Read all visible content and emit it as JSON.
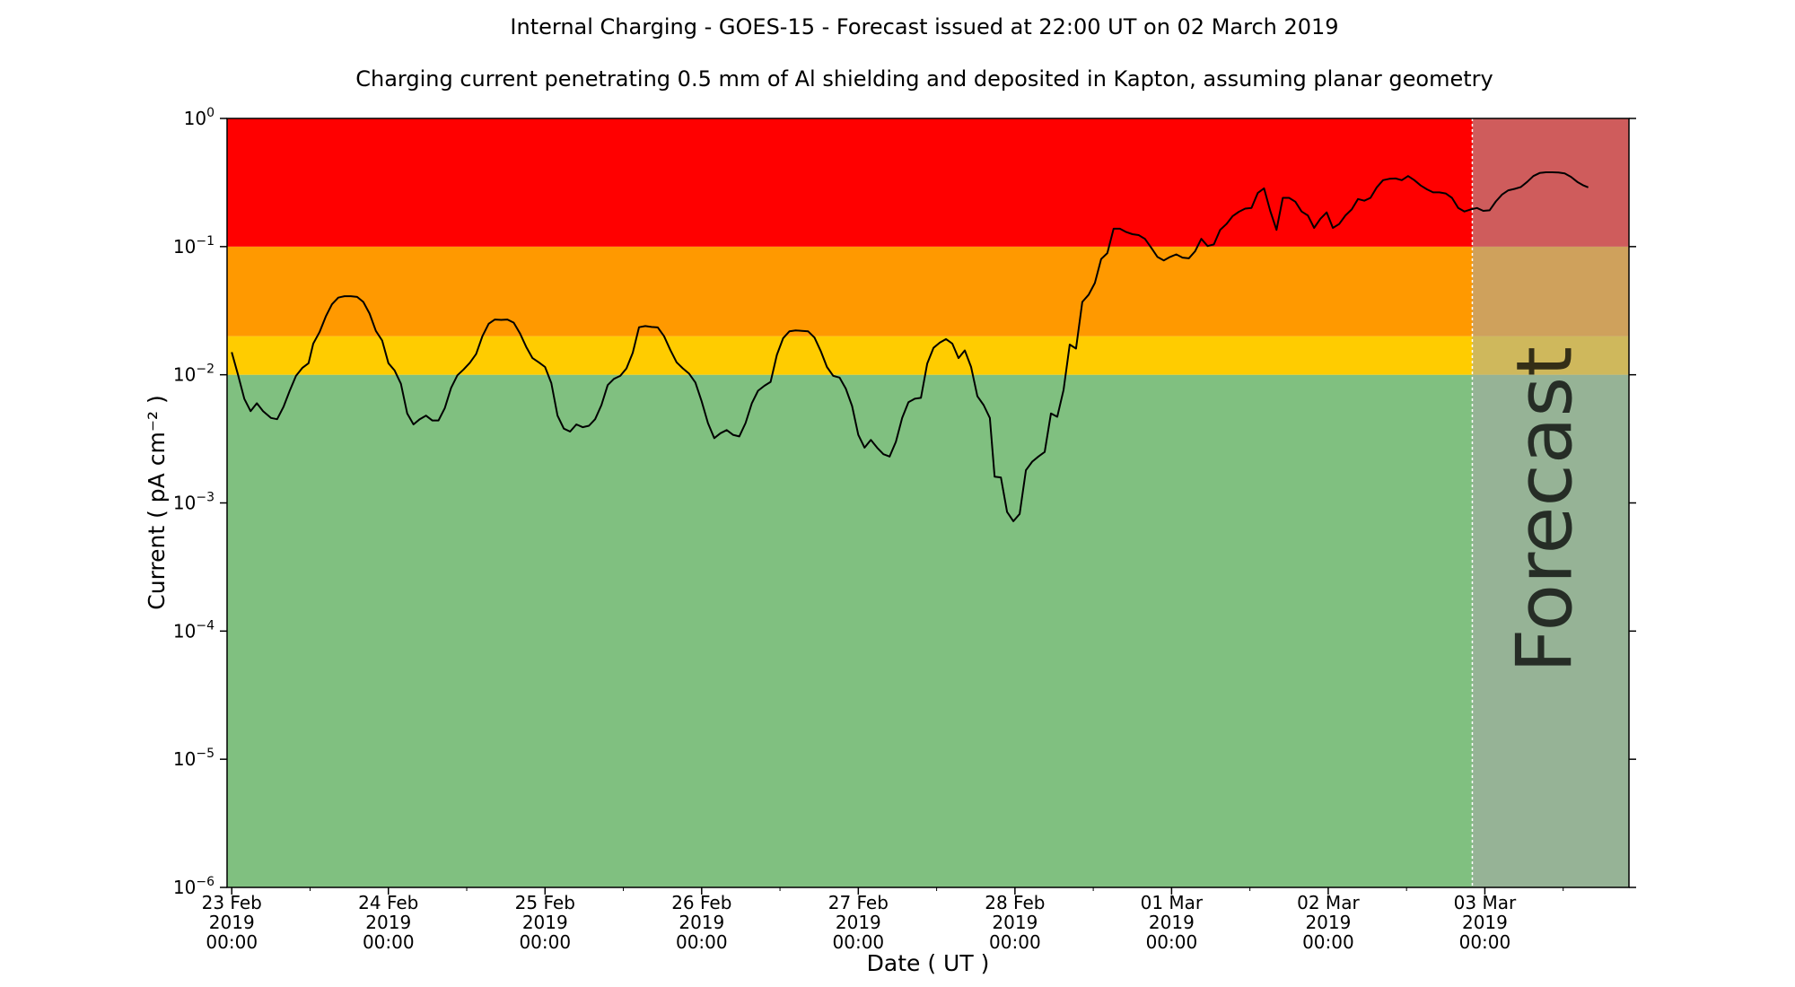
{
  "chart_data": {
    "type": "line",
    "title": "Internal Charging - GOES-15 - Forecast issued at 22:00 UT on 02 March 2019",
    "subtitle": "Charging current penetrating 0.5 mm of Al shielding and deposited in Kapton, assuming planar geometry",
    "xlabel": "Date ( UT )",
    "ylabel": "Current ( pA cm⁻² )",
    "yscale": "log",
    "ylim": [
      1e-06,
      1
    ],
    "xlim_days": [
      -0.03,
      8.92
    ],
    "forecast_start_day": 7.92,
    "forecast_label": "Forecast",
    "x_ticks": [
      {
        "day": 0,
        "line1": "23 Feb",
        "line2": "2019",
        "line3": "00:00"
      },
      {
        "day": 1,
        "line1": "24 Feb",
        "line2": "2019",
        "line3": "00:00"
      },
      {
        "day": 2,
        "line1": "25 Feb",
        "line2": "2019",
        "line3": "00:00"
      },
      {
        "day": 3,
        "line1": "26 Feb",
        "line2": "2019",
        "line3": "00:00"
      },
      {
        "day": 4,
        "line1": "27 Feb",
        "line2": "2019",
        "line3": "00:00"
      },
      {
        "day": 5,
        "line1": "28 Feb",
        "line2": "2019",
        "line3": "00:00"
      },
      {
        "day": 6,
        "line1": "01 Mar",
        "line2": "2019",
        "line3": "00:00"
      },
      {
        "day": 7,
        "line1": "02 Mar",
        "line2": "2019",
        "line3": "00:00"
      },
      {
        "day": 8,
        "line1": "03 Mar",
        "line2": "2019",
        "line3": "00:00"
      }
    ],
    "y_ticks": [
      {
        "exp": 0,
        "base": "10",
        "sup": "0"
      },
      {
        "exp": -1,
        "base": "10",
        "sup": "−1"
      },
      {
        "exp": -2,
        "base": "10",
        "sup": "−2"
      },
      {
        "exp": -3,
        "base": "10",
        "sup": "−3"
      },
      {
        "exp": -4,
        "base": "10",
        "sup": "−4"
      },
      {
        "exp": -5,
        "base": "10",
        "sup": "−5"
      },
      {
        "exp": -6,
        "base": "10",
        "sup": "−6"
      }
    ],
    "bands": [
      {
        "from": 1e-06,
        "to": 0.01,
        "color": "#80c080"
      },
      {
        "from": 0.01,
        "to": 0.02,
        "color": "#ffcc00"
      },
      {
        "from": 0.02,
        "to": 0.1,
        "color": "#ff9900"
      },
      {
        "from": 0.1,
        "to": 1,
        "color": "#ff0000"
      }
    ],
    "forecast_shade": {
      "color": "#a8a8a8",
      "opacity": 0.55
    },
    "series": [
      {
        "color": "#000000",
        "points": [
          [
            0.0,
            0.015
          ],
          [
            0.04,
            0.01
          ],
          [
            0.08,
            0.0065
          ],
          [
            0.12,
            0.0052
          ],
          [
            0.16,
            0.006
          ],
          [
            0.2,
            0.0052
          ],
          [
            0.25,
            0.0046
          ],
          [
            0.29,
            0.0045
          ],
          [
            0.33,
            0.0056
          ],
          [
            0.37,
            0.0075
          ],
          [
            0.41,
            0.0098
          ],
          [
            0.45,
            0.0113
          ],
          [
            0.49,
            0.0123
          ],
          [
            0.52,
            0.0175
          ],
          [
            0.56,
            0.0215
          ],
          [
            0.6,
            0.0285
          ],
          [
            0.64,
            0.0355
          ],
          [
            0.68,
            0.04
          ],
          [
            0.72,
            0.041
          ],
          [
            0.76,
            0.041
          ],
          [
            0.8,
            0.0405
          ],
          [
            0.84,
            0.037
          ],
          [
            0.88,
            0.03
          ],
          [
            0.92,
            0.022
          ],
          [
            0.96,
            0.0185
          ],
          [
            1.0,
            0.0123
          ],
          [
            1.04,
            0.0108
          ],
          [
            1.08,
            0.0085
          ],
          [
            1.12,
            0.005
          ],
          [
            1.16,
            0.0041
          ],
          [
            1.2,
            0.0045
          ],
          [
            1.24,
            0.0048
          ],
          [
            1.28,
            0.0044
          ],
          [
            1.32,
            0.0044
          ],
          [
            1.36,
            0.0055
          ],
          [
            1.4,
            0.0079
          ],
          [
            1.44,
            0.0099
          ],
          [
            1.48,
            0.011
          ],
          [
            1.52,
            0.0124
          ],
          [
            1.56,
            0.0145
          ],
          [
            1.6,
            0.02
          ],
          [
            1.64,
            0.025
          ],
          [
            1.68,
            0.027
          ],
          [
            1.72,
            0.0268
          ],
          [
            1.76,
            0.027
          ],
          [
            1.8,
            0.0255
          ],
          [
            1.84,
            0.021
          ],
          [
            1.88,
            0.0165
          ],
          [
            1.92,
            0.0135
          ],
          [
            1.96,
            0.0125
          ],
          [
            2.0,
            0.0115
          ],
          [
            2.04,
            0.0086
          ],
          [
            2.08,
            0.0048
          ],
          [
            2.12,
            0.0038
          ],
          [
            2.16,
            0.0036
          ],
          [
            2.2,
            0.0041
          ],
          [
            2.24,
            0.0039
          ],
          [
            2.28,
            0.004
          ],
          [
            2.32,
            0.0045
          ],
          [
            2.36,
            0.0058
          ],
          [
            2.4,
            0.0083
          ],
          [
            2.44,
            0.0093
          ],
          [
            2.48,
            0.0098
          ],
          [
            2.52,
            0.0112
          ],
          [
            2.56,
            0.0148
          ],
          [
            2.6,
            0.0235
          ],
          [
            2.64,
            0.024
          ],
          [
            2.68,
            0.0236
          ],
          [
            2.72,
            0.0234
          ],
          [
            2.76,
            0.02
          ],
          [
            2.8,
            0.0156
          ],
          [
            2.84,
            0.0125
          ],
          [
            2.88,
            0.0112
          ],
          [
            2.92,
            0.0102
          ],
          [
            2.96,
            0.0087
          ],
          [
            3.0,
            0.0062
          ],
          [
            3.04,
            0.0042
          ],
          [
            3.08,
            0.0032
          ],
          [
            3.12,
            0.0035
          ],
          [
            3.16,
            0.0037
          ],
          [
            3.2,
            0.0034
          ],
          [
            3.24,
            0.0033
          ],
          [
            3.28,
            0.0042
          ],
          [
            3.32,
            0.006
          ],
          [
            3.36,
            0.0075
          ],
          [
            3.4,
            0.0082
          ],
          [
            3.44,
            0.0088
          ],
          [
            3.48,
            0.0143
          ],
          [
            3.52,
            0.0193
          ],
          [
            3.56,
            0.0218
          ],
          [
            3.6,
            0.0222
          ],
          [
            3.64,
            0.022
          ],
          [
            3.68,
            0.0218
          ],
          [
            3.72,
            0.0195
          ],
          [
            3.76,
            0.0153
          ],
          [
            3.8,
            0.0115
          ],
          [
            3.84,
            0.0098
          ],
          [
            3.88,
            0.0095
          ],
          [
            3.92,
            0.0078
          ],
          [
            3.96,
            0.0057
          ],
          [
            4.0,
            0.0034
          ],
          [
            4.04,
            0.0027
          ],
          [
            4.08,
            0.0031
          ],
          [
            4.12,
            0.0027
          ],
          [
            4.16,
            0.0024
          ],
          [
            4.2,
            0.0023
          ],
          [
            4.24,
            0.003
          ],
          [
            4.28,
            0.0046
          ],
          [
            4.32,
            0.0061
          ],
          [
            4.36,
            0.0065
          ],
          [
            4.4,
            0.0066
          ],
          [
            4.44,
            0.0122
          ],
          [
            4.48,
            0.0162
          ],
          [
            4.52,
            0.0178
          ],
          [
            4.56,
            0.019
          ],
          [
            4.6,
            0.0175
          ],
          [
            4.64,
            0.0135
          ],
          [
            4.68,
            0.0155
          ],
          [
            4.72,
            0.0115
          ],
          [
            4.76,
            0.0068
          ],
          [
            4.8,
            0.0058
          ],
          [
            4.84,
            0.0046
          ],
          [
            4.87,
            0.0016
          ],
          [
            4.91,
            0.00158
          ],
          [
            4.95,
            0.00085
          ],
          [
            4.99,
            0.00072
          ],
          [
            5.03,
            0.00082
          ],
          [
            5.07,
            0.0018
          ],
          [
            5.11,
            0.0021
          ],
          [
            5.15,
            0.0023
          ],
          [
            5.19,
            0.0025
          ],
          [
            5.23,
            0.005
          ],
          [
            5.27,
            0.0047
          ],
          [
            5.31,
            0.0076
          ],
          [
            5.35,
            0.0172
          ],
          [
            5.39,
            0.016
          ],
          [
            5.43,
            0.037
          ],
          [
            5.47,
            0.042
          ],
          [
            5.51,
            0.052
          ],
          [
            5.55,
            0.08
          ],
          [
            5.59,
            0.089
          ],
          [
            5.63,
            0.138
          ],
          [
            5.67,
            0.138
          ],
          [
            5.71,
            0.13
          ],
          [
            5.75,
            0.125
          ],
          [
            5.79,
            0.123
          ],
          [
            5.83,
            0.115
          ],
          [
            5.87,
            0.098
          ],
          [
            5.91,
            0.083
          ],
          [
            5.95,
            0.078
          ],
          [
            5.99,
            0.083
          ],
          [
            6.03,
            0.087
          ],
          [
            6.07,
            0.082
          ],
          [
            6.11,
            0.081
          ],
          [
            6.15,
            0.092
          ],
          [
            6.19,
            0.115
          ],
          [
            6.23,
            0.101
          ],
          [
            6.27,
            0.104
          ],
          [
            6.31,
            0.135
          ],
          [
            6.35,
            0.15
          ],
          [
            6.39,
            0.173
          ],
          [
            6.43,
            0.187
          ],
          [
            6.47,
            0.198
          ],
          [
            6.51,
            0.2
          ],
          [
            6.55,
            0.262
          ],
          [
            6.59,
            0.285
          ],
          [
            6.63,
            0.19
          ],
          [
            6.67,
            0.135
          ],
          [
            6.71,
            0.24
          ],
          [
            6.75,
            0.24
          ],
          [
            6.79,
            0.224
          ],
          [
            6.83,
            0.188
          ],
          [
            6.87,
            0.175
          ],
          [
            6.91,
            0.14
          ],
          [
            6.95,
            0.165
          ],
          [
            6.99,
            0.185
          ],
          [
            7.03,
            0.14
          ],
          [
            7.07,
            0.15
          ],
          [
            7.11,
            0.175
          ],
          [
            7.15,
            0.195
          ],
          [
            7.19,
            0.235
          ],
          [
            7.23,
            0.228
          ],
          [
            7.27,
            0.24
          ],
          [
            7.31,
            0.29
          ],
          [
            7.35,
            0.33
          ],
          [
            7.39,
            0.338
          ],
          [
            7.43,
            0.34
          ],
          [
            7.47,
            0.33
          ],
          [
            7.51,
            0.355
          ],
          [
            7.55,
            0.33
          ],
          [
            7.59,
            0.3
          ],
          [
            7.63,
            0.28
          ],
          [
            7.67,
            0.265
          ],
          [
            7.71,
            0.265
          ],
          [
            7.75,
            0.26
          ],
          [
            7.79,
            0.24
          ],
          [
            7.83,
            0.2
          ],
          [
            7.87,
            0.188
          ],
          [
            7.91,
            0.195
          ],
          [
            7.95,
            0.2
          ],
          [
            7.99,
            0.19
          ],
          [
            8.03,
            0.192
          ],
          [
            8.07,
            0.225
          ],
          [
            8.11,
            0.255
          ],
          [
            8.15,
            0.275
          ],
          [
            8.19,
            0.282
          ],
          [
            8.23,
            0.292
          ],
          [
            8.27,
            0.32
          ],
          [
            8.31,
            0.355
          ],
          [
            8.35,
            0.375
          ],
          [
            8.39,
            0.38
          ],
          [
            8.43,
            0.38
          ],
          [
            8.47,
            0.378
          ],
          [
            8.51,
            0.372
          ],
          [
            8.55,
            0.35
          ],
          [
            8.59,
            0.32
          ],
          [
            8.63,
            0.3
          ],
          [
            8.66,
            0.29
          ]
        ]
      }
    ]
  }
}
